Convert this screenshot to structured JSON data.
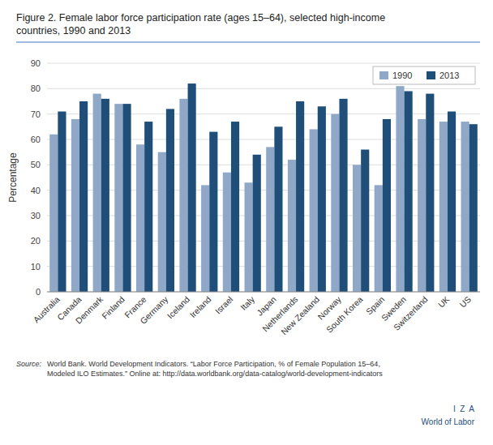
{
  "chart_data": {
    "type": "bar",
    "title": "Figure 2. Female labor force participation rate (ages 15–64), selected high-income\ncountries, 1990 and 2013",
    "ylabel": "Percentage",
    "categories": [
      "Australia",
      "Canada",
      "Denmark",
      "Finland",
      "France",
      "Germany",
      "Iceland",
      "Ireland",
      "Israel",
      "Italy",
      "Japan",
      "Netherlands",
      "New Zealand",
      "Norway",
      "South Korea",
      "Spain",
      "Sweden",
      "Switzerland",
      "UK",
      "US"
    ],
    "series": [
      {
        "name": "1990",
        "color": "#8FA8C8",
        "values": [
          62,
          68,
          78,
          74,
          58,
          55,
          76,
          42,
          47,
          43,
          57,
          52,
          64,
          70,
          50,
          42,
          81,
          68,
          67,
          67
        ]
      },
      {
        "name": "2013",
        "color": "#1F4E79",
        "values": [
          71,
          75,
          76,
          74,
          67,
          72,
          82,
          63,
          67,
          54,
          65,
          75,
          73,
          76,
          56,
          68,
          79,
          78,
          71,
          66
        ]
      }
    ],
    "ylim": [
      0,
      90
    ],
    "yticks": [
      0,
      10,
      20,
      30,
      40,
      50,
      60,
      70,
      80,
      90
    ],
    "grid": true,
    "legend": "upper right",
    "annotations": [
      "Source:",
      "World Bank. World Development Indicators. “Labor Force Participation, % of Female Population 15–64,\nModeled ILO Estimates.” Online at: http://data.worldbank.org/data-catalog/world-development-indicators",
      "I  Z  A",
      "World of Labor"
    ]
  }
}
